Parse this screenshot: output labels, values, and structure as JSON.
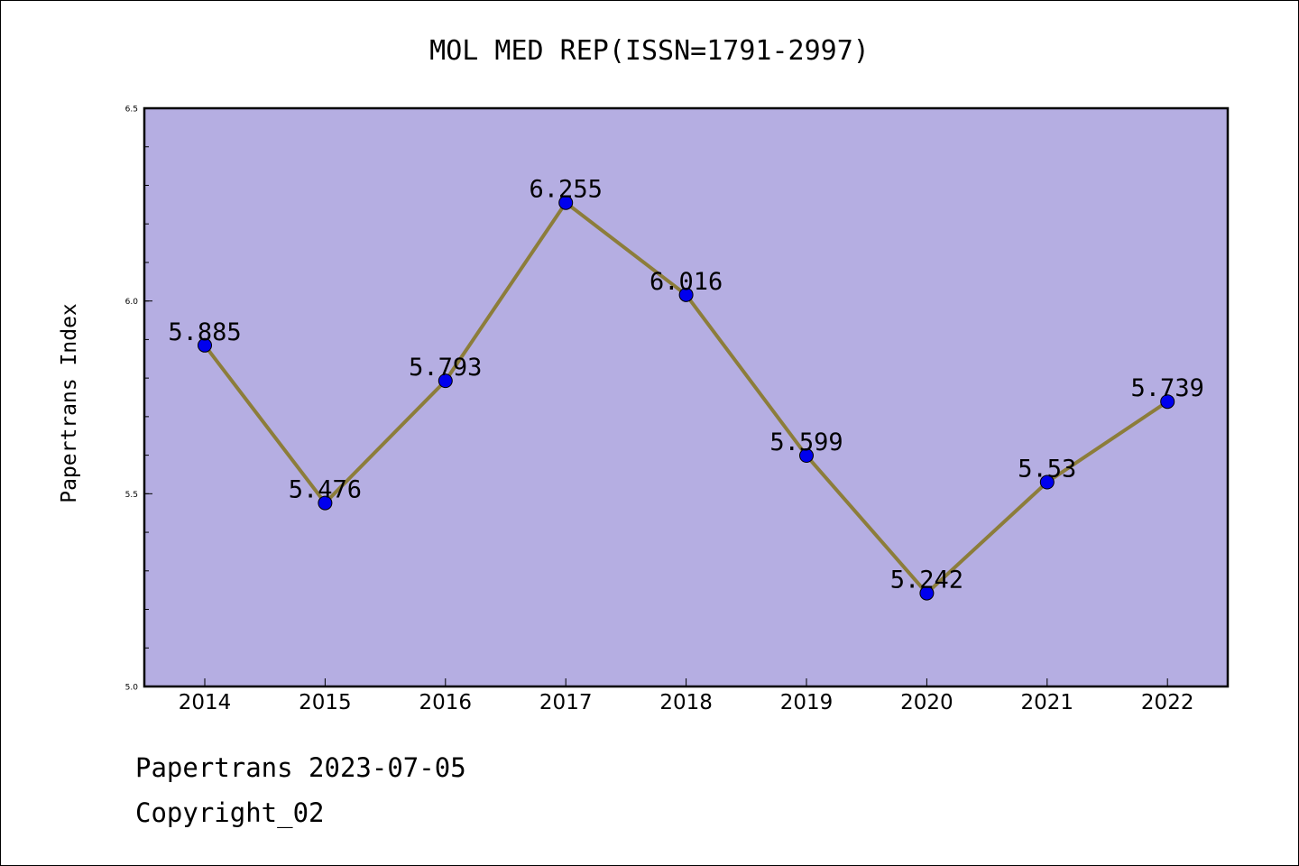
{
  "chart_data": {
    "type": "line",
    "title": "MOL MED REP(ISSN=1791-2997)",
    "ylabel": "Papertrans Index",
    "xlabel": "",
    "categories": [
      "2014",
      "2015",
      "2016",
      "2017",
      "2018",
      "2019",
      "2020",
      "2021",
      "2022"
    ],
    "values": [
      5.885,
      5.476,
      5.793,
      6.255,
      6.016,
      5.599,
      5.242,
      5.53,
      5.739
    ],
    "data_labels": [
      "5.885",
      "5.476",
      "5.793",
      "6.255",
      "6.016",
      "5.599",
      "5.242",
      "5.53",
      "5.739"
    ],
    "ylim": [
      5.0,
      6.5
    ],
    "yticks": [
      "5.0",
      "5.5",
      "6.0",
      "6.5"
    ],
    "grid": false,
    "colors": {
      "plot_background": "#b5aee2",
      "line": "#8c7d3a",
      "marker": "#0000ee"
    }
  },
  "footer": {
    "line1": "Papertrans 2023-07-05",
    "line2": "Copyright_02"
  }
}
